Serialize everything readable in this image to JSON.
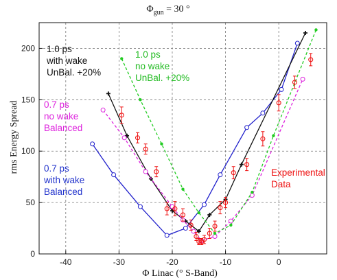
{
  "chart_data": {
    "type": "line",
    "title_parts": {
      "base": "Φ",
      "subscript": "gun",
      "rest": " = 30 °"
    },
    "xlabel": "Φ Linac (° S-Band)",
    "ylabel": "rms Energy Spread",
    "xlim": [
      -45,
      9
    ],
    "ylim": [
      0,
      225
    ],
    "xticks": [
      -40,
      -30,
      -20,
      -10,
      0
    ],
    "yticks": [
      0,
      50,
      100,
      150,
      200
    ],
    "xtick_labels": [
      "-40",
      "-30",
      "-20",
      "-10",
      "0"
    ],
    "ytick_labels": [
      "0",
      "50",
      "100",
      "150",
      "200"
    ],
    "grid": true,
    "series": [
      {
        "color": "#2222cc",
        "style": "solid",
        "marker": "circle",
        "x": [
          -35,
          -31,
          -26,
          -21,
          -17.5,
          -14,
          -11,
          -6,
          -3,
          0.5,
          3.5
        ],
        "y": [
          107,
          77,
          46,
          18,
          25,
          48,
          77,
          123,
          137,
          160,
          205
        ]
      },
      {
        "color": "#111111",
        "style": "solid",
        "marker": "cross",
        "x": [
          -32,
          -28.5,
          -24,
          -20,
          -17.5,
          -15,
          -13,
          -10,
          -7,
          5
        ],
        "y": [
          156,
          115,
          73,
          42,
          32,
          22,
          38,
          53,
          87,
          215
        ]
      },
      {
        "color": "#dd22dd",
        "style": "dashed",
        "marker": "circle",
        "x": [
          -33,
          -29,
          -25,
          -20,
          -18,
          -16,
          -14.5,
          -12,
          -9,
          -5,
          4.5
        ],
        "y": [
          140,
          113,
          80,
          46,
          33,
          22,
          13,
          17,
          32,
          57,
          170
        ]
      },
      {
        "color": "#22cc22",
        "style": "dashed",
        "marker": "dot",
        "x": [
          -29.5,
          -26,
          -22,
          -18,
          -15,
          -12,
          -9,
          -5,
          -1,
          7
        ],
        "y": [
          190,
          150,
          107,
          63,
          40,
          20,
          28,
          60,
          115,
          218
        ]
      },
      {
        "color": "#ee1111",
        "style": "markers",
        "marker": "open-circle-errorbar",
        "x": [
          -29.5,
          -26.5,
          -25,
          -23,
          -21,
          -19.5,
          -18,
          -16.5,
          -15.5,
          -15,
          -14.5,
          -14,
          -13,
          -12,
          -11,
          -10,
          -8.5,
          -6,
          -3,
          0,
          3,
          6
        ],
        "y": [
          135,
          113,
          102,
          80,
          44,
          44,
          38,
          28,
          17,
          12,
          12,
          14,
          20,
          27,
          45,
          50,
          79,
          87,
          112,
          147,
          167,
          189
        ],
        "errors": [
          8,
          5,
          5,
          5,
          6,
          7,
          6,
          5,
          4,
          3,
          3,
          4,
          5,
          5,
          6,
          5,
          6,
          6,
          7,
          8,
          6,
          6
        ]
      }
    ],
    "annotations": [
      {
        "lines": [
          "1.0 ps",
          "with wake",
          "UnBal. +20%"
        ],
        "color": "#111111"
      },
      {
        "lines": [
          "1.0 ps",
          "no wake",
          "UnBal. +20%"
        ],
        "color": "#22bb22"
      },
      {
        "lines": [
          "0.7 ps",
          "no wake",
          "Balanced"
        ],
        "color": "#dd22dd"
      },
      {
        "lines": [
          "0.7 ps",
          "with  wake",
          "Balanced"
        ],
        "color": "#2233cc"
      },
      {
        "lines": [
          "Experimental",
          "Data"
        ],
        "color": "#ee1111"
      }
    ]
  }
}
